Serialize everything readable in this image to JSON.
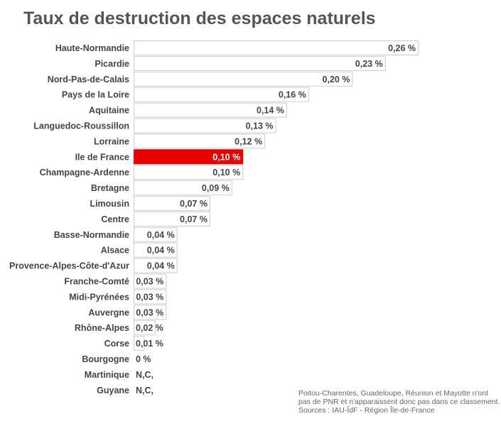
{
  "title": "Taux de destruction des espaces naturels",
  "chart_data": {
    "type": "bar",
    "orientation": "horizontal",
    "title": "Taux de destruction des espaces naturels",
    "categories": [
      "Haute-Normandie",
      "Picardie",
      "Nord-Pas-de-Calais",
      "Pays de la Loire",
      "Aquitaine",
      "Languedoc-Roussillon",
      "Lorraine",
      "Ile de France",
      "Champagne-Ardenne",
      "Bretagne",
      "Limousin",
      "Centre",
      "Basse-Normandie",
      "Alsace",
      "Provence-Alpes-Côte-d'Azur",
      "Franche-Comté",
      "Midi-Pyrénées",
      "Auvergne",
      "Rhône-Alpes",
      "Corse",
      "Bourgogne",
      "Martinique",
      "Guyane"
    ],
    "values": [
      0.26,
      0.23,
      0.2,
      0.16,
      0.14,
      0.13,
      0.12,
      0.1,
      0.1,
      0.09,
      0.07,
      0.07,
      0.04,
      0.04,
      0.04,
      0.03,
      0.03,
      0.03,
      0.02,
      0.01,
      0,
      null,
      null
    ],
    "value_labels": [
      "0,26 %",
      "0,23 %",
      "0,20 %",
      "0,16 %",
      "0,14 %",
      "0,13 %",
      "0,12 %",
      "0,10 %",
      "0,10 %",
      "0,09 %",
      "0,07 %",
      "0,07 %",
      "0,04 %",
      "0,04 %",
      "0,04 %",
      "0,03 %",
      "0,03 %",
      "0,03 %",
      "0,02 %",
      "0,01 %",
      "0 %",
      "N,C,",
      "N,C,"
    ],
    "highlight": "Ile de France",
    "highlight_color": "#e60000",
    "bar_color": "#ffffff",
    "bar_border_color": "#cccccc",
    "xlim": [
      0,
      0.26
    ],
    "grid": false,
    "legend": "none"
  },
  "note": {
    "line1": "Poitou-Charentes, Guadeloupe, Réunion et Mayotte n'ont",
    "line2": "pas de PNR et n'apparaissent donc pas dans ce classement.",
    "line3": "Sources : IAU-ÎdF - Région Île-de-France"
  }
}
